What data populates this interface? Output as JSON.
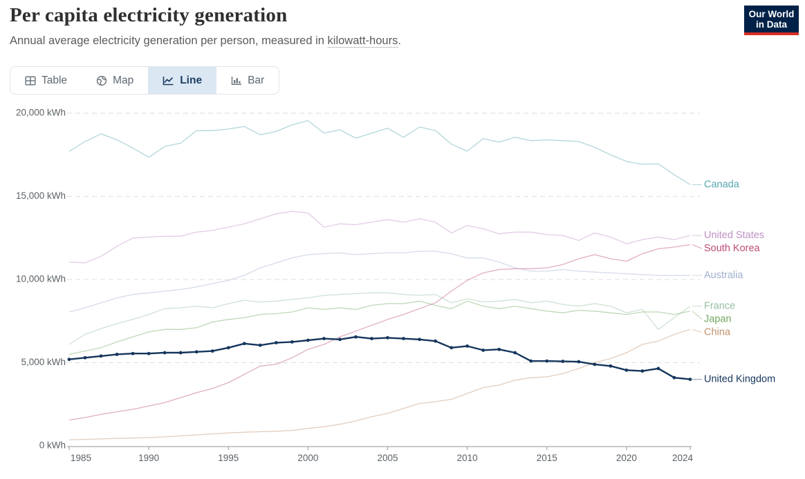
{
  "header": {
    "title": "Per capita electricity generation",
    "subtitle_prefix": "Annual average electricity generation per person, measured in ",
    "subtitle_term": "kilowatt-hours",
    "subtitle_suffix": ".",
    "logo": {
      "line1": "Our World",
      "line2": "in Data",
      "bg": "#002147",
      "accent": "#d93025"
    }
  },
  "toolbar": {
    "tabs": [
      {
        "label": "Table",
        "icon": "table-icon",
        "active": false
      },
      {
        "label": "Map",
        "icon": "globe-icon",
        "active": false
      },
      {
        "label": "Line",
        "icon": "line-chart-icon",
        "active": true
      },
      {
        "label": "Bar",
        "icon": "bar-chart-icon",
        "active": false
      }
    ],
    "active_bg": "#dbe8f3",
    "active_text": "#1d3d63",
    "inactive_text": "#5f6770"
  },
  "chart_data": {
    "type": "line",
    "title": "Per capita electricity generation",
    "unit": "kWh",
    "grid": "horizontal-dashed",
    "legend_position": "right-edge-labels",
    "xlim": [
      1985,
      2024
    ],
    "ylim": [
      0,
      20000
    ],
    "xticks": [
      1985,
      1990,
      1995,
      2000,
      2005,
      2010,
      2015,
      2020,
      2024
    ],
    "yticks": [
      0,
      5000,
      10000,
      15000,
      20000
    ],
    "ytick_labels": [
      "0 kWh",
      "5,000 kWh",
      "10,000 kWh",
      "15,000 kWh",
      "20,000 kWh"
    ],
    "x": [
      1985,
      1986,
      1987,
      1988,
      1989,
      1990,
      1991,
      1992,
      1993,
      1994,
      1995,
      1996,
      1997,
      1998,
      1999,
      2000,
      2001,
      2002,
      2003,
      2004,
      2005,
      2006,
      2007,
      2008,
      2009,
      2010,
      2011,
      2012,
      2013,
      2014,
      2015,
      2016,
      2017,
      2018,
      2019,
      2020,
      2021,
      2022,
      2023,
      2024
    ],
    "series": [
      {
        "name": "Canada",
        "color": "#57a5ae",
        "highlight": false,
        "values": [
          17700,
          18300,
          18760,
          18400,
          17900,
          17350,
          18000,
          18200,
          18950,
          18950,
          19050,
          19200,
          18700,
          18900,
          19300,
          19550,
          18800,
          19000,
          18500,
          18800,
          19100,
          18550,
          19170,
          18960,
          18140,
          17720,
          18470,
          18260,
          18550,
          18350,
          18400,
          18350,
          18300,
          17950,
          17500,
          17100,
          16930,
          16950,
          16300,
          15700
        ]
      },
      {
        "name": "United States",
        "color": "#bf8fc5",
        "highlight": false,
        "values": [
          11050,
          11000,
          11400,
          12000,
          12500,
          12550,
          12600,
          12600,
          12850,
          12950,
          13150,
          13350,
          13650,
          13950,
          14100,
          14000,
          13150,
          13350,
          13300,
          13450,
          13600,
          13450,
          13650,
          13450,
          12800,
          13250,
          13050,
          12750,
          12850,
          12850,
          12700,
          12650,
          12350,
          12800,
          12550,
          12150,
          12400,
          12550,
          12400,
          12650
        ]
      },
      {
        "name": "South Korea",
        "color": "#bc4a77",
        "highlight": false,
        "values": [
          1550,
          1700,
          1900,
          2050,
          2200,
          2400,
          2600,
          2900,
          3200,
          3450,
          3800,
          4300,
          4800,
          4900,
          5300,
          5800,
          6100,
          6550,
          6900,
          7250,
          7600,
          7900,
          8250,
          8600,
          9300,
          9950,
          10400,
          10600,
          10650,
          10650,
          10700,
          10900,
          11250,
          11500,
          11250,
          11100,
          11550,
          11850,
          11950,
          12100
        ]
      },
      {
        "name": "Australia",
        "color": "#9fb0cd",
        "highlight": false,
        "values": [
          8050,
          8300,
          8600,
          8900,
          9100,
          9200,
          9300,
          9400,
          9550,
          9750,
          9950,
          10250,
          10700,
          11000,
          11300,
          11500,
          11550,
          11600,
          11500,
          11550,
          11600,
          11600,
          11700,
          11700,
          11550,
          11300,
          11300,
          11050,
          10700,
          10500,
          10500,
          10600,
          10500,
          10450,
          10400,
          10350,
          10300,
          10250,
          10250,
          10250
        ]
      },
      {
        "name": "France",
        "color": "#94bd9f",
        "highlight": false,
        "values": [
          6100,
          6700,
          7050,
          7350,
          7600,
          7900,
          8250,
          8300,
          8400,
          8300,
          8550,
          8750,
          8650,
          8700,
          8800,
          8900,
          9050,
          9100,
          9150,
          9200,
          9200,
          9100,
          9050,
          9100,
          8600,
          8850,
          8650,
          8700,
          8800,
          8600,
          8700,
          8500,
          8400,
          8550,
          8400,
          8000,
          8200,
          7000,
          7700,
          8400
        ]
      },
      {
        "name": "Japan",
        "color": "#71a95e",
        "highlight": false,
        "values": [
          5500,
          5700,
          5900,
          6250,
          6550,
          6850,
          7000,
          7000,
          7100,
          7450,
          7600,
          7700,
          7900,
          7950,
          8050,
          8300,
          8200,
          8300,
          8200,
          8450,
          8550,
          8550,
          8700,
          8450,
          8250,
          8700,
          8400,
          8250,
          8400,
          8250,
          8100,
          8000,
          8150,
          8100,
          8000,
          7900,
          8050,
          8050,
          7900,
          8100
        ]
      },
      {
        "name": "China",
        "color": "#c0916c",
        "highlight": false,
        "values": [
          370,
          390,
          420,
          450,
          470,
          500,
          540,
          600,
          660,
          720,
          780,
          820,
          850,
          880,
          930,
          1050,
          1150,
          1300,
          1500,
          1750,
          1950,
          2250,
          2550,
          2650,
          2800,
          3150,
          3500,
          3650,
          3950,
          4100,
          4150,
          4350,
          4650,
          5000,
          5250,
          5600,
          6100,
          6300,
          6700,
          7000
        ]
      },
      {
        "name": "United Kingdom",
        "color": "#14355c",
        "highlight": true,
        "values": [
          5200,
          5300,
          5400,
          5500,
          5550,
          5550,
          5600,
          5600,
          5650,
          5700,
          5900,
          6150,
          6050,
          6200,
          6250,
          6350,
          6450,
          6400,
          6550,
          6450,
          6500,
          6450,
          6400,
          6300,
          5900,
          6000,
          5750,
          5800,
          5600,
          5100,
          5100,
          5080,
          5060,
          4900,
          4800,
          4550,
          4500,
          4650,
          4100,
          4000
        ]
      }
    ],
    "axis_color": "#a9a9a9",
    "gridline_color": "#dedede",
    "tick_label_color": "#5b6166"
  }
}
